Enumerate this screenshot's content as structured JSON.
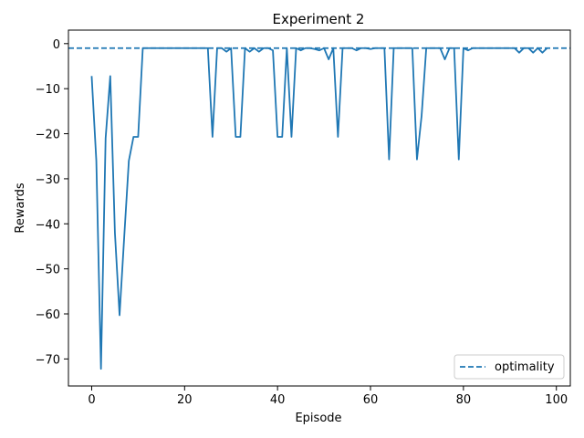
{
  "chart_data": {
    "type": "line",
    "title": "Experiment 2",
    "xlabel": "Episode",
    "ylabel": "Rewards",
    "xlim": [
      -5,
      103
    ],
    "ylim": [
      -76,
      3
    ],
    "xticks": [
      0,
      20,
      40,
      60,
      80,
      100
    ],
    "yticks": [
      0,
      -10,
      -20,
      -30,
      -40,
      -50,
      -60,
      -70
    ],
    "grid": false,
    "legend_position": "lower-right",
    "series": [
      {
        "color": "#1f77b4",
        "style": "solid",
        "x": [
          0,
          1,
          2,
          3,
          4,
          5,
          6,
          7,
          8,
          9,
          10,
          11,
          12,
          13,
          14,
          15,
          16,
          17,
          18,
          19,
          20,
          21,
          22,
          23,
          24,
          25,
          26,
          27,
          28,
          29,
          30,
          31,
          32,
          33,
          34,
          35,
          36,
          37,
          38,
          39,
          40,
          41,
          42,
          43,
          44,
          45,
          46,
          47,
          48,
          49,
          50,
          51,
          52,
          53,
          54,
          55,
          56,
          57,
          58,
          59,
          60,
          61,
          62,
          63,
          64,
          65,
          66,
          67,
          68,
          69,
          70,
          71,
          72,
          73,
          74,
          75,
          76,
          77,
          78,
          79,
          80,
          81,
          82,
          83,
          84,
          85,
          86,
          87,
          88,
          89,
          90,
          91,
          92,
          93,
          94,
          95,
          96,
          97,
          98
        ],
        "values": [
          -7.2,
          -26,
          -72.2,
          -21,
          -7.2,
          -42,
          -60.3,
          -43,
          -26,
          -20.7,
          -20.7,
          -1,
          -1,
          -1,
          -1,
          -1,
          -1,
          -1,
          -1,
          -1,
          -1,
          -1,
          -1,
          -1,
          -1,
          -1,
          -20.7,
          -1,
          -1,
          -1.8,
          -1,
          -20.7,
          -20.7,
          -1,
          -1.8,
          -1,
          -1.8,
          -1,
          -1,
          -1.5,
          -20.7,
          -20.7,
          -1,
          -20.7,
          -1,
          -1.5,
          -1,
          -1,
          -1.2,
          -1.5,
          -1,
          -3.5,
          -1,
          -20.7,
          -1,
          -1,
          -1,
          -1.5,
          -1,
          -1,
          -1.2,
          -1,
          -1,
          -1,
          -25.7,
          -1,
          -1,
          -1,
          -1,
          -1,
          -25.7,
          -16,
          -1,
          -1,
          -1,
          -1,
          -3.5,
          -1,
          -1,
          -25.7,
          -1,
          -1.5,
          -1,
          -1,
          -1,
          -1,
          -1,
          -1,
          -1,
          -1,
          -1,
          -1,
          -2,
          -1,
          -1,
          -2,
          -1,
          -2,
          -1
        ]
      },
      {
        "name": "optimality",
        "color": "#1f77b4",
        "style": "dashed",
        "y": -1
      }
    ]
  }
}
